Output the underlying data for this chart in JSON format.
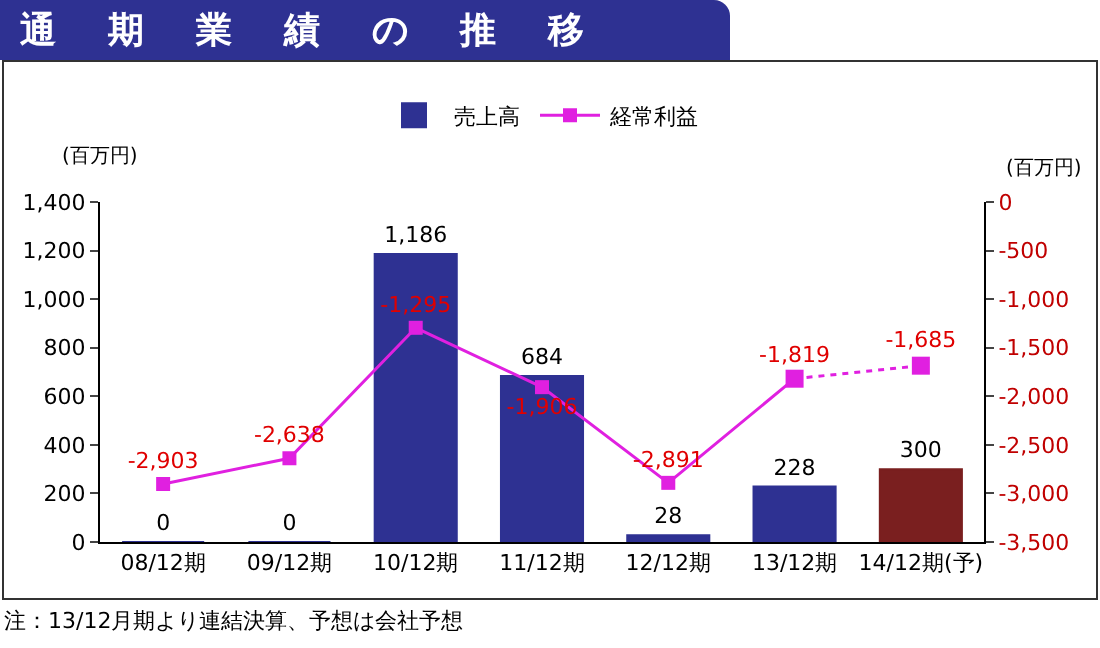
{
  "chart_data": {
    "type": "bar",
    "title": "通期業績の推移",
    "categories": [
      "08/12期",
      "09/12期",
      "10/12期",
      "11/12期",
      "12/12期",
      "13/12期",
      "14/12期(予)"
    ],
    "series": [
      {
        "name": "売上高",
        "colors": [
          "#2e3192",
          "#2e3192",
          "#2e3192",
          "#2e3192",
          "#2e3192",
          "#2e3192",
          "#7a1f1f"
        ],
        "values": [
          0,
          0,
          1186,
          684,
          28,
          228,
          300
        ],
        "value_labels": [
          "0",
          "0",
          "1,186",
          "684",
          "28",
          "228",
          "300"
        ]
      },
      {
        "name": "経常利益",
        "type": "line",
        "axis": "y2",
        "color": "#e020e0",
        "line_style": "solid",
        "values": [
          -2903,
          -2638,
          -1295,
          -1906,
          -2891,
          -1819,
          null
        ],
        "value_labels": [
          "-2,903",
          "-2,638",
          "-1,295",
          "-1,906",
          "-2,891",
          "-1,819",
          null
        ]
      },
      {
        "type": "line",
        "axis": "y2",
        "color": "#e020e0",
        "line_style": "dotted",
        "values": [
          null,
          null,
          null,
          null,
          null,
          -1819,
          -1685
        ],
        "value_labels": [
          null,
          null,
          null,
          null,
          null,
          null,
          "-1,685"
        ]
      }
    ],
    "ylabel": "(百万円)",
    "y2label": "(百万円)",
    "ylim": [
      0,
      1400
    ],
    "yticks": [
      0,
      200,
      400,
      600,
      800,
      {
        "value": 1000,
        "label": "1,000"
      },
      {
        "value": 1200,
        "label": "1,200"
      },
      {
        "value": 1400,
        "label": "1,400"
      }
    ],
    "y2lim": [
      -3500,
      0
    ],
    "y2ticks": [
      {
        "value": -3500,
        "label": "-3,500"
      },
      {
        "value": -3000,
        "label": "-3,000"
      },
      {
        "value": -2500,
        "label": "-2,500"
      },
      {
        "value": -2000,
        "label": "-2,000"
      },
      {
        "value": -1500,
        "label": "-1,500"
      },
      {
        "value": -1000,
        "label": "-1,000"
      },
      -500,
      0
    ],
    "grid": false,
    "legend": "top",
    "marker": "square",
    "annotations": [
      "注：13/12月期より連結決算、予想は会社予想"
    ]
  }
}
